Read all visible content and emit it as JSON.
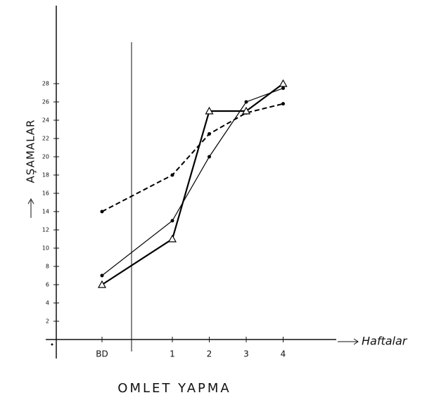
{
  "chart_data": {
    "type": "line",
    "title": "OMLET YAPMA",
    "y_label": "AŞAMALAR",
    "x_label": "Haftalar",
    "categories": [
      "BD",
      "1",
      "2",
      "3",
      "4"
    ],
    "series": [
      {
        "color": "#000000",
        "line_style": "dashed",
        "marker": "dot",
        "line_width": 2,
        "values": [
          14,
          18,
          22.5,
          24.8,
          25.8
        ]
      },
      {
        "color": "#000000",
        "line_style": "solid",
        "marker": "triangle",
        "line_width": 2.2,
        "values": [
          6,
          11,
          25,
          25,
          28
        ]
      },
      {
        "color": "#000000",
        "line_style": "solid",
        "marker": "dot",
        "line_width": 1.2,
        "values": [
          7,
          13,
          20,
          26,
          27.5
        ]
      }
    ],
    "ylim": [
      0,
      30
    ],
    "yticks": [
      2,
      4,
      6,
      8,
      10,
      12,
      14,
      16,
      18,
      20,
      22,
      24,
      26,
      28
    ]
  }
}
